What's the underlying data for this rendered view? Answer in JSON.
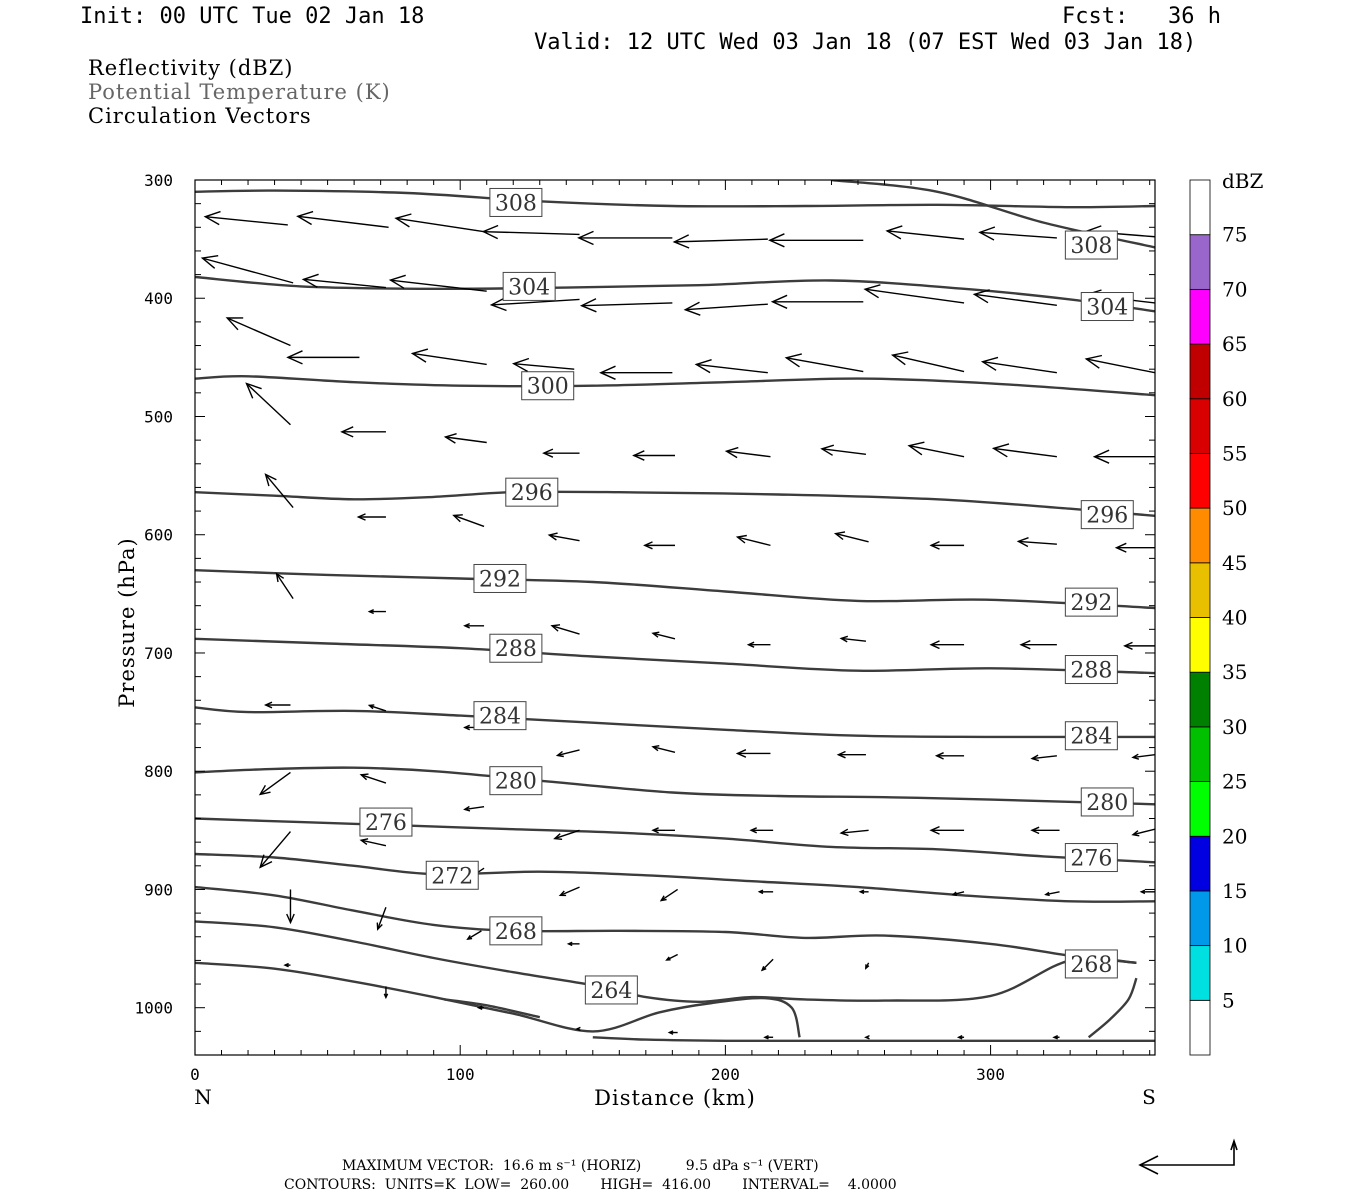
{
  "header": {
    "init": "Init: 00 UTC Tue 02 Jan 18",
    "fcst": "Fcst:   36 h",
    "valid": "Valid: 12 UTC Wed 03 Jan 18 (07 EST Wed 03 Jan 18)"
  },
  "fields": {
    "reflectivity": "Reflectivity (dBZ)",
    "theta": "Potential Temperature (K)",
    "vectors": "Circulation Vectors"
  },
  "footer": {
    "max_vector": "MAXIMUM VECTOR:  16.6 m s⁻¹ (HORIZ)          9.5 dPa s⁻¹ (VERT)",
    "contours": "CONTOURS:  UNITS=K  LOW=  260.00       HIGH=  416.00       INTERVAL=    4.0000"
  },
  "colors": {
    "contour": "#3c3c3c",
    "scale_boxes": [
      "#ffffff",
      "#00e0e0",
      "#0098e8",
      "#0000e0",
      "#00ff00",
      "#00c000",
      "#008000",
      "#ffff00",
      "#e8c000",
      "#ff8c00",
      "#ff0000",
      "#d80000",
      "#c00000",
      "#ff00ff",
      "#9966cc",
      "#ffffff"
    ]
  },
  "chart_data": {
    "type": "line",
    "title": "Potential Temperature (K)",
    "xlabel": "Distance (km)",
    "ylabel": "Pressure (hPa)",
    "xlim": [
      0,
      362
    ],
    "ylim": [
      300,
      1040
    ],
    "x_ticks": [
      0,
      100,
      200,
      300
    ],
    "y_ticks": [
      300,
      400,
      500,
      600,
      700,
      800,
      900,
      1000
    ],
    "x_end_labels": {
      "left": "N",
      "right": "S"
    },
    "color_scale": {
      "label": "dBZ",
      "ticks": [
        5,
        10,
        15,
        20,
        25,
        30,
        35,
        40,
        45,
        50,
        55,
        60,
        65,
        70,
        75
      ]
    },
    "contours": [
      {
        "level": 308,
        "label": "308",
        "x": [
          0,
          30,
          80,
          130,
          180,
          230,
          280,
          330,
          362
        ],
        "y": [
          310,
          309,
          311,
          318,
          322,
          322,
          321,
          323,
          322
        ],
        "label_at": [
          {
            "x": 121,
            "y": 319
          },
          {
            "x": 338,
            "y": 355
          }
        ]
      },
      {
        "level": 308,
        "x": [
          240,
          280,
          320,
          362
        ],
        "y": [
          300,
          310,
          336,
          357
        ]
      },
      {
        "level": 304,
        "x": [
          0,
          40,
          90,
          140,
          190,
          240,
          290,
          330,
          362
        ],
        "y": [
          382,
          390,
          392,
          391,
          389,
          385,
          392,
          401,
          411
        ],
        "label_at": [
          {
            "x": 126,
            "y": 390
          },
          {
            "x": 344,
            "y": 407
          }
        ]
      },
      {
        "level": 300,
        "x": [
          0,
          20,
          60,
          100,
          150,
          200,
          250,
          300,
          362
        ],
        "y": [
          468,
          466,
          471,
          474,
          474,
          471,
          468,
          472,
          482
        ],
        "label_at": [
          {
            "x": 133,
            "y": 474
          }
        ]
      },
      {
        "level": 296,
        "x": [
          0,
          30,
          60,
          90,
          120,
          160,
          220,
          280,
          330,
          362
        ],
        "y": [
          564,
          567,
          570,
          568,
          564,
          564,
          566,
          570,
          578,
          584
        ],
        "label_at": [
          {
            "x": 127,
            "y": 564
          },
          {
            "x": 344,
            "y": 583
          }
        ]
      },
      {
        "level": 292,
        "x": [
          0,
          50,
          100,
          150,
          200,
          250,
          300,
          362
        ],
        "y": [
          630,
          634,
          637,
          640,
          648,
          656,
          655,
          662
        ],
        "label_at": [
          {
            "x": 115,
            "y": 637
          },
          {
            "x": 338,
            "y": 657
          }
        ]
      },
      {
        "level": 288,
        "x": [
          0,
          50,
          100,
          150,
          200,
          250,
          300,
          362
        ],
        "y": [
          688,
          692,
          696,
          703,
          709,
          715,
          713,
          717
        ],
        "label_at": [
          {
            "x": 121,
            "y": 696
          },
          {
            "x": 338,
            "y": 714
          }
        ]
      },
      {
        "level": 284,
        "x": [
          0,
          20,
          60,
          100,
          150,
          200,
          250,
          300,
          362
        ],
        "y": [
          746,
          750,
          749,
          753,
          759,
          765,
          770,
          771,
          771
        ],
        "label_at": [
          {
            "x": 115,
            "y": 753
          },
          {
            "x": 338,
            "y": 770
          }
        ]
      },
      {
        "level": 280,
        "x": [
          0,
          30,
          60,
          90,
          130,
          180,
          220,
          260,
          300,
          362
        ],
        "y": [
          801,
          798,
          797,
          800,
          808,
          818,
          821,
          822,
          824,
          828
        ],
        "label_at": [
          {
            "x": 121,
            "y": 808
          },
          {
            "x": 344,
            "y": 826
          }
        ]
      },
      {
        "level": 276,
        "x": [
          0,
          40,
          80,
          120,
          160,
          200,
          240,
          280,
          320,
          362
        ],
        "y": [
          840,
          843,
          846,
          849,
          852,
          857,
          864,
          866,
          872,
          877
        ],
        "label_at": [
          {
            "x": 72,
            "y": 843
          },
          {
            "x": 338,
            "y": 873
          }
        ]
      },
      {
        "level": 272,
        "x": [
          0,
          30,
          60,
          90,
          130,
          170,
          210,
          250,
          290,
          330,
          362
        ],
        "y": [
          870,
          873,
          880,
          887,
          885,
          888,
          893,
          898,
          905,
          910,
          910
        ],
        "label_at": [
          {
            "x": 97,
            "y": 888
          }
        ]
      },
      {
        "level": 268,
        "x": [
          0,
          30,
          60,
          90,
          120,
          160,
          200,
          230,
          260,
          300,
          330,
          355
        ],
        "y": [
          898,
          905,
          918,
          930,
          935,
          935,
          936,
          941,
          939,
          946,
          956,
          962
        ],
        "label_at": [
          {
            "x": 121,
            "y": 935
          },
          {
            "x": 338,
            "y": 963
          }
        ]
      },
      {
        "level": 268,
        "x": [
          0,
          30,
          60,
          90,
          120,
          150,
          170,
          190,
          210,
          230,
          260,
          300,
          330,
          355
        ],
        "y": [
          927,
          932,
          944,
          958,
          970,
          981,
          991,
          995,
          991,
          993,
          994,
          990,
          960,
          962
        ]
      },
      {
        "level": 264,
        "x": [
          0,
          30,
          60,
          90,
          120,
          150,
          175,
          195,
          215,
          225,
          228
        ],
        "y": [
          962,
          967,
          978,
          991,
          1005,
          1020,
          1004,
          996,
          992,
          1000,
          1025
        ],
        "label_at": [
          {
            "x": 157,
            "y": 985
          }
        ]
      },
      {
        "level": 264,
        "x": [
          94,
          110,
          130
        ],
        "y": [
          993,
          998,
          1008
        ]
      },
      {
        "level": 264,
        "x": [
          337,
          345,
          352,
          355
        ],
        "y": [
          1025,
          1010,
          993,
          975
        ]
      },
      {
        "level": 260,
        "x": [
          150,
          170,
          200,
          250,
          300,
          362
        ],
        "y": [
          1025,
          1027,
          1028,
          1028,
          1028,
          1028
        ]
      }
    ],
    "vectors": [
      {
        "x": 35,
        "y": 338,
        "dx": -30,
        "dy": -3
      },
      {
        "x": 73,
        "y": 340,
        "dx": -33,
        "dy": -4
      },
      {
        "x": 110,
        "y": 344,
        "dx": -33,
        "dy": -5
      },
      {
        "x": 145,
        "y": 346,
        "dx": -35,
        "dy": -1
      },
      {
        "x": 180,
        "y": 349,
        "dx": -34,
        "dy": 0
      },
      {
        "x": 216,
        "y": 350,
        "dx": -34,
        "dy": 1
      },
      {
        "x": 252,
        "y": 351,
        "dx": -34,
        "dy": 0
      },
      {
        "x": 290,
        "y": 350,
        "dx": -28,
        "dy": -3
      },
      {
        "x": 325,
        "y": 349,
        "dx": -28,
        "dy": -2
      },
      {
        "x": 362,
        "y": 348,
        "dx": -25,
        "dy": -2
      },
      {
        "x": 37,
        "y": 387,
        "dx": -33,
        "dy": -9
      },
      {
        "x": 72,
        "y": 391,
        "dx": -30,
        "dy": -3
      },
      {
        "x": 110,
        "y": 394,
        "dx": -35,
        "dy": -4
      },
      {
        "x": 145,
        "y": 401,
        "dx": -32,
        "dy": 2
      },
      {
        "x": 180,
        "y": 404,
        "dx": -33,
        "dy": 1
      },
      {
        "x": 216,
        "y": 405,
        "dx": -30,
        "dy": 2
      },
      {
        "x": 252,
        "y": 403,
        "dx": -33,
        "dy": 0
      },
      {
        "x": 290,
        "y": 404,
        "dx": -36,
        "dy": -5
      },
      {
        "x": 325,
        "y": 406,
        "dx": -30,
        "dy": -4
      },
      {
        "x": 362,
        "y": 404,
        "dx": -25,
        "dy": -3
      },
      {
        "x": 36,
        "y": 440,
        "dx": -23,
        "dy": -10
      },
      {
        "x": 62,
        "y": 450,
        "dx": -26,
        "dy": 0
      },
      {
        "x": 110,
        "y": 456,
        "dx": -27,
        "dy": -4
      },
      {
        "x": 143,
        "y": 460,
        "dx": -22,
        "dy": -2
      },
      {
        "x": 180,
        "y": 463,
        "dx": -26,
        "dy": 0
      },
      {
        "x": 216,
        "y": 463,
        "dx": -26,
        "dy": -3
      },
      {
        "x": 252,
        "y": 462,
        "dx": -28,
        "dy": -5
      },
      {
        "x": 290,
        "y": 462,
        "dx": -26,
        "dy": -6
      },
      {
        "x": 325,
        "y": 463,
        "dx": -27,
        "dy": -4
      },
      {
        "x": 362,
        "y": 463,
        "dx": -25,
        "dy": -5
      },
      {
        "x": 36,
        "y": 507,
        "dx": -16,
        "dy": -15
      },
      {
        "x": 72,
        "y": 513,
        "dx": -16,
        "dy": 0
      },
      {
        "x": 110,
        "y": 522,
        "dx": -15,
        "dy": -2
      },
      {
        "x": 145,
        "y": 531,
        "dx": -13,
        "dy": 0
      },
      {
        "x": 181,
        "y": 533,
        "dx": -15,
        "dy": 0
      },
      {
        "x": 217,
        "y": 534,
        "dx": -16,
        "dy": -2
      },
      {
        "x": 253,
        "y": 532,
        "dx": -16,
        "dy": -2
      },
      {
        "x": 290,
        "y": 534,
        "dx": -20,
        "dy": -4
      },
      {
        "x": 325,
        "y": 534,
        "dx": -23,
        "dy": -3
      },
      {
        "x": 362,
        "y": 534,
        "dx": -22,
        "dy": 0
      },
      {
        "x": 37,
        "y": 577,
        "dx": -10,
        "dy": -12
      },
      {
        "x": 72,
        "y": 585,
        "dx": -10,
        "dy": 0
      },
      {
        "x": 109,
        "y": 593,
        "dx": -11,
        "dy": -4
      },
      {
        "x": 145,
        "y": 605,
        "dx": -11,
        "dy": -2
      },
      {
        "x": 181,
        "y": 609,
        "dx": -11,
        "dy": 0
      },
      {
        "x": 217,
        "y": 609,
        "dx": -12,
        "dy": -3
      },
      {
        "x": 254,
        "y": 606,
        "dx": -12,
        "dy": -3
      },
      {
        "x": 290,
        "y": 609,
        "dx": -12,
        "dy": 0
      },
      {
        "x": 325,
        "y": 608,
        "dx": -14,
        "dy": -1
      },
      {
        "x": 362,
        "y": 611,
        "dx": -14,
        "dy": 0
      },
      {
        "x": 37,
        "y": 654,
        "dx": -6,
        "dy": -9
      },
      {
        "x": 72,
        "y": 665,
        "dx": -6,
        "dy": 0
      },
      {
        "x": 109,
        "y": 677,
        "dx": -7,
        "dy": 0
      },
      {
        "x": 145,
        "y": 684,
        "dx": -10,
        "dy": -3
      },
      {
        "x": 181,
        "y": 688,
        "dx": -8,
        "dy": -2
      },
      {
        "x": 217,
        "y": 693,
        "dx": -8,
        "dy": 0
      },
      {
        "x": 253,
        "y": 690,
        "dx": -9,
        "dy": -1
      },
      {
        "x": 290,
        "y": 693,
        "dx": -12,
        "dy": 0
      },
      {
        "x": 325,
        "y": 693,
        "dx": -13,
        "dy": 0
      },
      {
        "x": 362,
        "y": 694,
        "dx": -11,
        "dy": 0
      },
      {
        "x": 36,
        "y": 744,
        "dx": -9,
        "dy": 0
      },
      {
        "x": 72,
        "y": 749,
        "dx": -6,
        "dy": -2
      },
      {
        "x": 109,
        "y": 763,
        "dx": -7,
        "dy": 0
      },
      {
        "x": 145,
        "y": 782,
        "dx": -8,
        "dy": 2
      },
      {
        "x": 181,
        "y": 784,
        "dx": -8,
        "dy": -2
      },
      {
        "x": 217,
        "y": 785,
        "dx": -12,
        "dy": 0
      },
      {
        "x": 253,
        "y": 786,
        "dx": -10,
        "dy": 0
      },
      {
        "x": 290,
        "y": 787,
        "dx": -10,
        "dy": 0
      },
      {
        "x": 325,
        "y": 787,
        "dx": -9,
        "dy": 1
      },
      {
        "x": 362,
        "y": 786,
        "dx": -8,
        "dy": 1
      },
      {
        "x": 36,
        "y": 801,
        "dx": -11,
        "dy": 8
      },
      {
        "x": 72,
        "y": 810,
        "dx": -9,
        "dy": -3
      },
      {
        "x": 109,
        "y": 830,
        "dx": -7,
        "dy": 1
      },
      {
        "x": 145,
        "y": 850,
        "dx": -9,
        "dy": 3
      },
      {
        "x": 181,
        "y": 850,
        "dx": -8,
        "dy": 0
      },
      {
        "x": 218,
        "y": 850,
        "dx": -8,
        "dy": 0
      },
      {
        "x": 254,
        "y": 850,
        "dx": -10,
        "dy": 1
      },
      {
        "x": 290,
        "y": 850,
        "dx": -12,
        "dy": 0
      },
      {
        "x": 326,
        "y": 850,
        "dx": -10,
        "dy": 0
      },
      {
        "x": 362,
        "y": 849,
        "dx": -8,
        "dy": 2
      },
      {
        "x": 36,
        "y": 851,
        "dx": -11,
        "dy": 13
      },
      {
        "x": 72,
        "y": 863,
        "dx": -9,
        "dy": -2
      },
      {
        "x": 109,
        "y": 882,
        "dx": -9,
        "dy": 6
      },
      {
        "x": 145,
        "y": 898,
        "dx": -7,
        "dy": 3
      },
      {
        "x": 182,
        "y": 900,
        "dx": -6,
        "dy": 4
      },
      {
        "x": 218,
        "y": 902,
        "dx": -5,
        "dy": 0
      },
      {
        "x": 254,
        "y": 902,
        "dx": -3,
        "dy": 0
      },
      {
        "x": 290,
        "y": 902,
        "dx": -4,
        "dy": 1
      },
      {
        "x": 326,
        "y": 902,
        "dx": -5,
        "dy": 1
      },
      {
        "x": 362,
        "y": 902,
        "dx": -5,
        "dy": 0
      },
      {
        "x": 36,
        "y": 900,
        "dx": 0,
        "dy": 12
      },
      {
        "x": 72,
        "y": 915,
        "dx": -3,
        "dy": 8
      },
      {
        "x": 108,
        "y": 935,
        "dx": -5,
        "dy": 3
      },
      {
        "x": 145,
        "y": 946,
        "dx": -4,
        "dy": 0
      },
      {
        "x": 182,
        "y": 955,
        "dx": -4,
        "dy": 2
      },
      {
        "x": 218,
        "y": 959,
        "dx": -4,
        "dy": 4
      },
      {
        "x": 254,
        "y": 962,
        "dx": -1,
        "dy": 2
      },
      {
        "x": 36,
        "y": 964,
        "dx": -2,
        "dy": 0
      },
      {
        "x": 72,
        "y": 982,
        "dx": 0,
        "dy": 4
      },
      {
        "x": 109,
        "y": 1000,
        "dx": -2,
        "dy": 0
      },
      {
        "x": 145,
        "y": 1018,
        "dx": -1,
        "dy": 0
      },
      {
        "x": 182,
        "y": 1021,
        "dx": -3,
        "dy": 0
      },
      {
        "x": 218,
        "y": 1025,
        "dx": -3,
        "dy": 0
      },
      {
        "x": 254,
        "y": 1025,
        "dx": -1,
        "dy": 0
      },
      {
        "x": 290,
        "y": 1025,
        "dx": -2,
        "dy": 0
      },
      {
        "x": 326,
        "y": 1025,
        "dx": -2,
        "dy": 0
      }
    ],
    "reference_vector": {
      "horiz": "16.6 m s-1",
      "vert": "9.5 dPa s-1"
    }
  }
}
